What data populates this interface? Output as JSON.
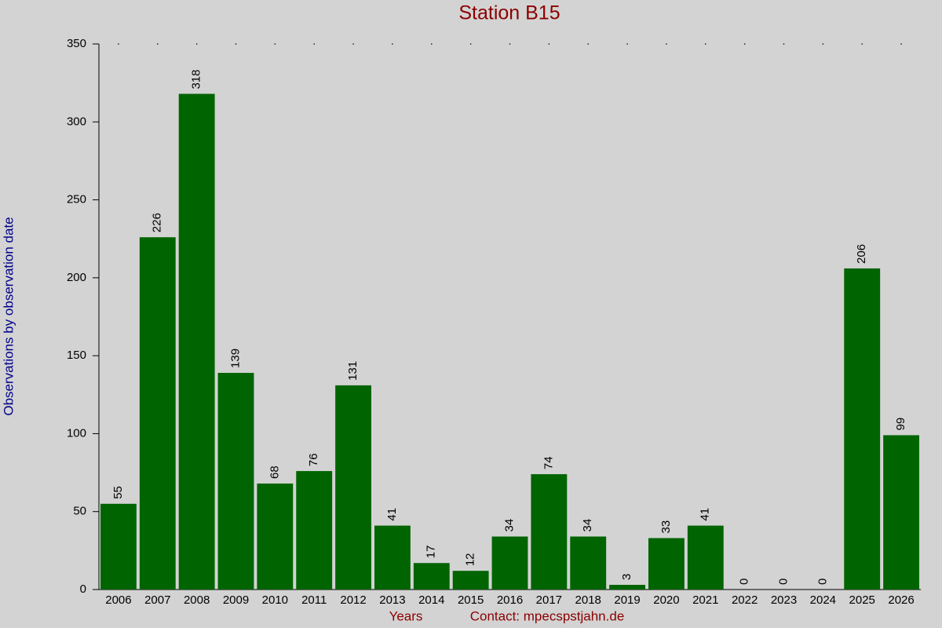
{
  "chart_data": {
    "type": "bar",
    "title": "Station B15",
    "x_label": "Years",
    "y_label": "Observations by observation date",
    "annotation": "Contact: mpecspstjahn.de",
    "categories": [
      "2006",
      "2007",
      "2008",
      "2009",
      "2010",
      "2011",
      "2012",
      "2013",
      "2014",
      "2015",
      "2016",
      "2017",
      "2018",
      "2019",
      "2020",
      "2021",
      "2022",
      "2023",
      "2024",
      "2025",
      "2026"
    ],
    "values": [
      55,
      226,
      318,
      139,
      68,
      76,
      131,
      41,
      17,
      12,
      34,
      74,
      34,
      3,
      33,
      41,
      0,
      0,
      0,
      206,
      99
    ],
    "color": "#006400",
    "ylim": [
      0,
      350
    ],
    "yticks": [
      0,
      50,
      100,
      150,
      200,
      250,
      300,
      350
    ]
  }
}
